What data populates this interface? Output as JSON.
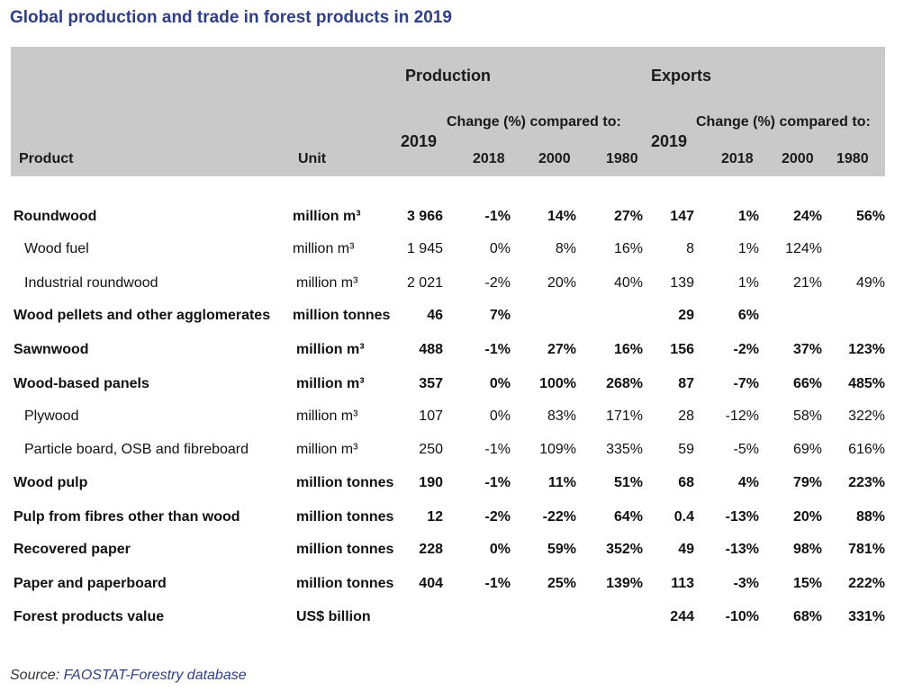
{
  "title": "Global production and trade in forest products in 2019",
  "header": {
    "production": "Production",
    "exports": "Exports",
    "change_label": "Change (%) compared to:",
    "year_2019": "2019",
    "y2018": "2018",
    "y2000": "2000",
    "y1980": "1980",
    "product": "Product",
    "unit": "Unit"
  },
  "rows": [
    {
      "product": "Roundwood",
      "unit": "million m³",
      "p2019": "3 966",
      "p2018": "-1%",
      "p2000": "14%",
      "p1980": "27%",
      "e2019": "147",
      "e2018": "1%",
      "e2000": "24%",
      "e1980": "56%"
    },
    {
      "product": "Wood fuel",
      "unit": "million m³",
      "p2019": "1 945",
      "p2018": "0%",
      "p2000": "8%",
      "p1980": "16%",
      "e2019": "8",
      "e2018": "1%",
      "e2000": "124%",
      "e1980": ""
    },
    {
      "product": "Industrial roundwood",
      "unit": "million m³",
      "p2019": "2 021",
      "p2018": "-2%",
      "p2000": "20%",
      "p1980": "40%",
      "e2019": "139",
      "e2018": "1%",
      "e2000": "21%",
      "e1980": "49%"
    },
    {
      "product": "Wood pellets and other agglomerates",
      "unit": "million tonnes",
      "p2019": "46",
      "p2018": "7%",
      "p2000": "",
      "p1980": "",
      "e2019": "29",
      "e2018": "6%",
      "e2000": "",
      "e1980": ""
    },
    {
      "product": "Sawnwood",
      "unit": "million m³",
      "p2019": "488",
      "p2018": "-1%",
      "p2000": "27%",
      "p1980": "16%",
      "e2019": "156",
      "e2018": "-2%",
      "e2000": "37%",
      "e1980": "123%"
    },
    {
      "product": "Wood-based panels",
      "unit": "million m³",
      "p2019": "357",
      "p2018": "0%",
      "p2000": "100%",
      "p1980": "268%",
      "e2019": "87",
      "e2018": "-7%",
      "e2000": "66%",
      "e1980": "485%"
    },
    {
      "product": "Plywood",
      "unit": "million m³",
      "p2019": "107",
      "p2018": "0%",
      "p2000": "83%",
      "p1980": "171%",
      "e2019": "28",
      "e2018": "-12%",
      "e2000": "58%",
      "e1980": "322%"
    },
    {
      "product": "Particle board, OSB and fibreboard",
      "unit": "million m³",
      "p2019": "250",
      "p2018": "-1%",
      "p2000": "109%",
      "p1980": "335%",
      "e2019": "59",
      "e2018": "-5%",
      "e2000": "69%",
      "e1980": "616%"
    },
    {
      "product": "Wood pulp",
      "unit": "million tonnes",
      "p2019": "190",
      "p2018": "-1%",
      "p2000": "11%",
      "p1980": "51%",
      "e2019": "68",
      "e2018": "4%",
      "e2000": "79%",
      "e1980": "223%"
    },
    {
      "product": "Pulp from fibres other than wood",
      "unit": "million tonnes",
      "p2019": "12",
      "p2018": "-2%",
      "p2000": "-22%",
      "p1980": "64%",
      "e2019": "0.4",
      "e2018": "-13%",
      "e2000": "20%",
      "e1980": "88%"
    },
    {
      "product": "Recovered paper",
      "unit": "million tonnes",
      "p2019": "228",
      "p2018": "0%",
      "p2000": "59%",
      "p1980": "352%",
      "e2019": "49",
      "e2018": "-13%",
      "e2000": "98%",
      "e1980": "781%"
    },
    {
      "product": "Paper and paperboard",
      "unit": "million tonnes",
      "p2019": "404",
      "p2018": "-1%",
      "p2000": "25%",
      "p1980": "139%",
      "e2019": "113",
      "e2018": "-3%",
      "e2000": "15%",
      "e1980": "222%"
    },
    {
      "product": "Forest products value",
      "unit": "US$ billion",
      "p2019": "",
      "p2018": "",
      "p2000": "",
      "p1980": "",
      "e2019": "244",
      "e2018": "-10%",
      "e2000": "68%",
      "e1980": "331%"
    }
  ],
  "source": {
    "label": "Source: ",
    "link": "FAOSTAT-Forestry database"
  }
}
